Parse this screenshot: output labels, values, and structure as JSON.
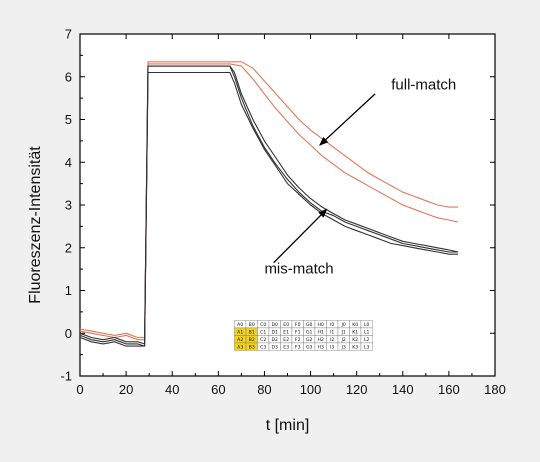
{
  "chart_data": {
    "type": "line",
    "xlabel": "t [min]",
    "ylabel": "Fluoreszenz-Intensität",
    "xlim": [
      0,
      180
    ],
    "ylim": [
      -1,
      7
    ],
    "x_ticks": [
      0,
      20,
      40,
      60,
      80,
      100,
      120,
      140,
      160,
      180
    ],
    "y_ticks": [
      -1,
      0,
      1,
      2,
      3,
      4,
      5,
      6,
      7
    ],
    "grid": false,
    "series": [
      {
        "color": "#e0785a",
        "x": [
          0,
          5,
          10,
          15,
          20,
          25,
          28,
          29.5,
          35,
          45,
          55,
          65,
          70,
          75,
          80,
          85,
          90,
          95,
          100,
          105,
          110,
          115,
          120,
          125,
          130,
          135,
          140,
          145,
          150,
          155,
          160,
          164
        ],
        "y": [
          0.1,
          0.05,
          0.0,
          -0.05,
          0.0,
          -0.1,
          -0.1,
          6.35,
          6.35,
          6.35,
          6.35,
          6.35,
          6.35,
          6.2,
          5.9,
          5.6,
          5.3,
          5.0,
          4.75,
          4.55,
          4.35,
          4.15,
          3.95,
          3.75,
          3.6,
          3.45,
          3.3,
          3.2,
          3.1,
          3.0,
          2.95,
          2.95
        ]
      },
      {
        "color": "#e0785a",
        "x": [
          0,
          5,
          10,
          15,
          20,
          25,
          28,
          29.5,
          35,
          45,
          55,
          65,
          70,
          75,
          80,
          85,
          90,
          95,
          100,
          105,
          110,
          115,
          120,
          125,
          130,
          135,
          140,
          145,
          150,
          155,
          160,
          164
        ],
        "y": [
          0.05,
          0.0,
          -0.05,
          -0.1,
          -0.05,
          -0.15,
          -0.15,
          6.3,
          6.3,
          6.3,
          6.3,
          6.3,
          6.25,
          5.95,
          5.6,
          5.25,
          4.95,
          4.65,
          4.4,
          4.15,
          3.95,
          3.75,
          3.6,
          3.45,
          3.3,
          3.15,
          3.0,
          2.9,
          2.8,
          2.7,
          2.65,
          2.6
        ]
      },
      {
        "color": "#333333",
        "x": [
          0,
          5,
          10,
          15,
          20,
          25,
          28,
          29.5,
          35,
          45,
          55,
          65,
          67,
          70,
          75,
          80,
          85,
          90,
          95,
          100,
          105,
          110,
          115,
          120,
          125,
          130,
          135,
          140,
          145,
          150,
          155,
          160,
          164
        ],
        "y": [
          0.0,
          -0.1,
          -0.15,
          -0.1,
          -0.2,
          -0.2,
          -0.25,
          6.25,
          6.25,
          6.25,
          6.25,
          6.25,
          6.1,
          5.6,
          5.0,
          4.5,
          4.1,
          3.7,
          3.4,
          3.15,
          2.95,
          2.8,
          2.65,
          2.55,
          2.45,
          2.35,
          2.25,
          2.15,
          2.1,
          2.05,
          2.0,
          1.95,
          1.9
        ]
      },
      {
        "color": "#333333",
        "x": [
          0,
          5,
          10,
          15,
          20,
          25,
          28,
          29.5,
          35,
          45,
          55,
          65,
          67,
          70,
          75,
          80,
          85,
          90,
          95,
          100,
          105,
          110,
          115,
          120,
          125,
          130,
          135,
          140,
          145,
          150,
          155,
          160,
          164
        ],
        "y": [
          -0.05,
          -0.15,
          -0.2,
          -0.15,
          -0.25,
          -0.25,
          -0.3,
          6.1,
          6.1,
          6.1,
          6.1,
          6.1,
          5.85,
          5.35,
          4.8,
          4.3,
          3.9,
          3.5,
          3.25,
          3.0,
          2.8,
          2.65,
          2.5,
          2.4,
          2.3,
          2.2,
          2.1,
          2.05,
          2.0,
          1.95,
          1.9,
          1.85,
          1.85
        ]
      },
      {
        "color": "#333333",
        "x": [
          0,
          5,
          10,
          15,
          20,
          25,
          28,
          29.5,
          35,
          45,
          55,
          65,
          67,
          70,
          75,
          80,
          85,
          90,
          95,
          100,
          105,
          110,
          115,
          120,
          125,
          130,
          135,
          140,
          145,
          150,
          155,
          160,
          164
        ],
        "y": [
          -0.1,
          -0.2,
          -0.25,
          -0.2,
          -0.3,
          -0.3,
          -0.3,
          6.25,
          6.25,
          6.25,
          6.25,
          6.25,
          6.0,
          5.5,
          4.85,
          4.35,
          3.95,
          3.6,
          3.3,
          3.05,
          2.85,
          2.75,
          2.6,
          2.5,
          2.4,
          2.3,
          2.2,
          2.1,
          2.05,
          2.0,
          1.95,
          1.9,
          1.9
        ]
      }
    ],
    "annotations": [
      {
        "text": "full-match",
        "text_x": 135,
        "text_y": 5.7,
        "arrow_from_x": 128,
        "arrow_from_y": 5.6,
        "arrow_to_x": 104,
        "arrow_to_y": 4.4
      },
      {
        "text": "mis-match",
        "text_x": 80,
        "text_y": 1.4,
        "arrow_from_x": 84,
        "arrow_from_y": 1.65,
        "arrow_to_x": 107,
        "arrow_to_y": 2.9
      }
    ],
    "plate_inset": {
      "rows": [
        [
          "A0",
          "B0",
          "C0",
          "D0",
          "E0",
          "F0",
          "G0",
          "H0",
          "I0",
          "J0",
          "K0",
          "L0"
        ],
        [
          "A1",
          "B1",
          "C1",
          "D1",
          "E1",
          "F1",
          "G1",
          "H1",
          "I1",
          "J1",
          "K1",
          "L1"
        ],
        [
          "A2",
          "B2",
          "C2",
          "D2",
          "E2",
          "F2",
          "G2",
          "H2",
          "I2",
          "J2",
          "K2",
          "L2"
        ],
        [
          "A3",
          "B3",
          "C3",
          "D3",
          "E3",
          "F3",
          "G3",
          "H3",
          "I3",
          "J3",
          "K3",
          "L3"
        ]
      ],
      "highlighted": [
        "A1",
        "B1",
        "A2",
        "B2",
        "A3",
        "B3"
      ],
      "highlight_color": "#f2d21a"
    }
  }
}
